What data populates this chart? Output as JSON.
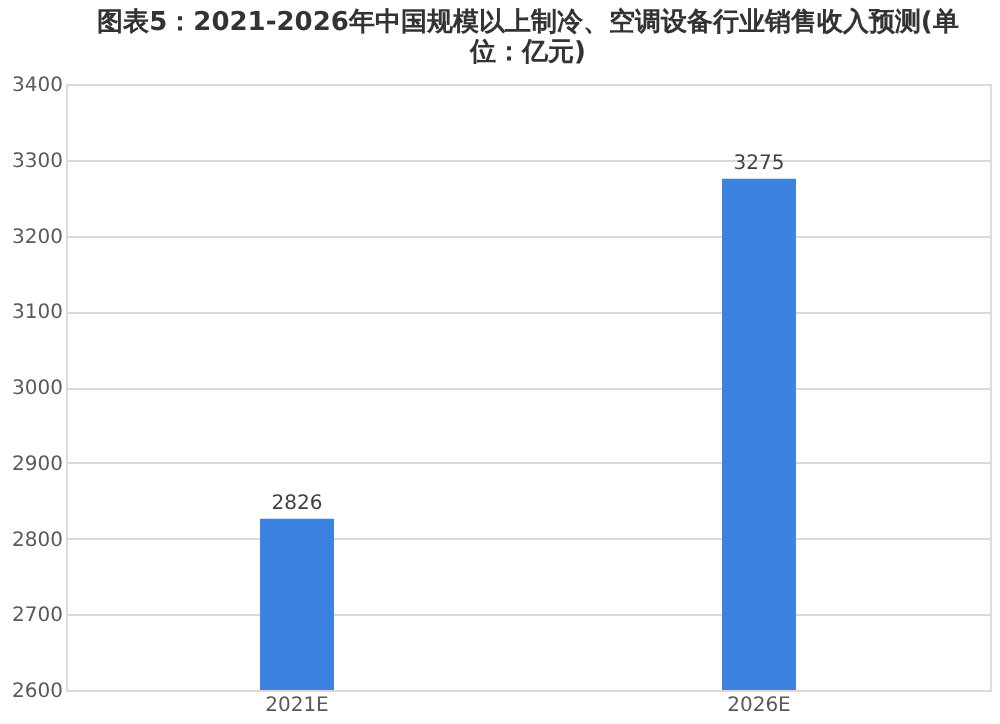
{
  "chart_data": {
    "type": "bar",
    "title": "图表5：2021-2026年中国规模以上制冷、空调设备行业销售收入预测(单位：亿元)",
    "categories": [
      "2021E",
      "2026E"
    ],
    "values": [
      2826,
      3275
    ],
    "color": "#3c82e0",
    "ylim": [
      2600,
      3400
    ],
    "yticks": [
      2600,
      2700,
      2800,
      2900,
      3000,
      3100,
      3200,
      3300,
      3400
    ],
    "grid": "y",
    "data_labels": true
  }
}
